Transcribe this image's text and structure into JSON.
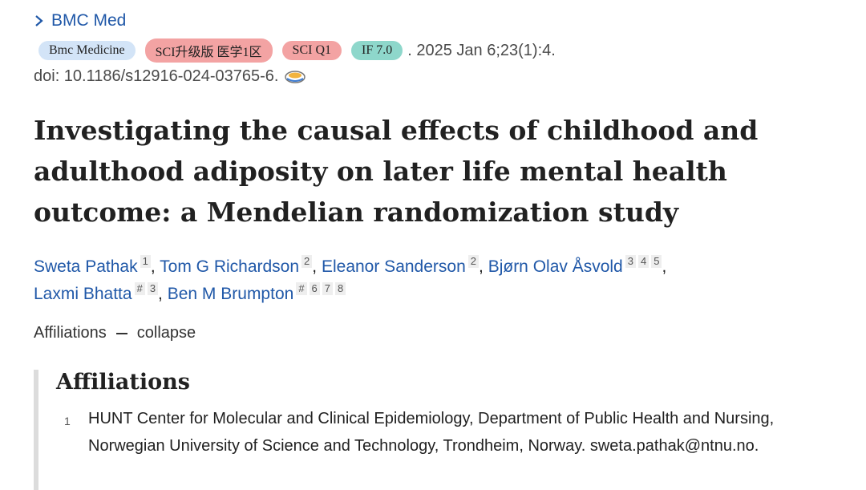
{
  "journal": "BMC Med",
  "badges": [
    "Bmc Medicine",
    "SCI升级版 医学1区",
    "SCI Q1",
    "IF 7.0"
  ],
  "citation": ". 2025 Jan 6;23(1):4.",
  "doi": "doi: 10.1186/s12916-024-03765-6.",
  "title": "Investigating the causal effects of childhood and adulthood adiposity on later life mental health outcome: a Mendelian randomization study",
  "author_separator": ",",
  "authors": [
    {
      "name": "Sweta Pathak",
      "sups": [
        "1"
      ]
    },
    {
      "name": "Tom G Richardson",
      "sups": [
        "2"
      ]
    },
    {
      "name": "Eleanor Sanderson",
      "sups": [
        "2"
      ]
    },
    {
      "name": "Bjørn Olav Åsvold",
      "sups": [
        "3",
        "4",
        "5"
      ]
    },
    {
      "name": "Laxmi Bhatta",
      "sups": [
        "#",
        "3"
      ]
    },
    {
      "name": "Ben M Brumpton",
      "sups": [
        "#",
        "6",
        "7",
        "8"
      ]
    }
  ],
  "affiliations_toggle": {
    "label": "Affiliations",
    "action": "collapse"
  },
  "affiliations": {
    "heading": "Affiliations",
    "items": [
      {
        "number": "1",
        "text": "HUNT Center for Molecular and Clinical Epidemiology, Department of Public Health and Nursing, Norwegian University of Science and Technology, Trondheim, Norway. sweta.pathak@ntnu.no."
      }
    ]
  }
}
